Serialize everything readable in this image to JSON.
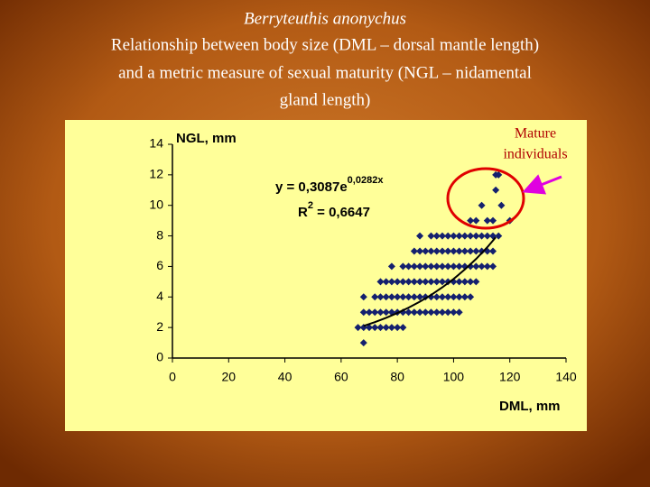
{
  "chart_data": {
    "type": "scatter",
    "subtitle": "Berryteuthis anonychus",
    "title": [
      "Relationship between body size (DML – dorsal mantle length)",
      "and a metric measure of sexual maturity (NGL – nidamental",
      "gland length)"
    ],
    "x_label": "DML, mm",
    "y_label": "NGL, mm",
    "color": "#14206e",
    "x": [
      68,
      66,
      68,
      70,
      72,
      74,
      76,
      78,
      80,
      82,
      68,
      70,
      72,
      74,
      76,
      78,
      80,
      82,
      84,
      86,
      88,
      90,
      92,
      94,
      96,
      98,
      100,
      102,
      68,
      72,
      74,
      76,
      78,
      80,
      82,
      84,
      86,
      88,
      90,
      92,
      94,
      96,
      98,
      100,
      102,
      104,
      106,
      74,
      76,
      78,
      80,
      82,
      84,
      86,
      88,
      90,
      92,
      94,
      96,
      98,
      100,
      102,
      104,
      106,
      108,
      78,
      82,
      84,
      86,
      88,
      90,
      92,
      94,
      96,
      98,
      100,
      102,
      104,
      106,
      108,
      110,
      112,
      114,
      86,
      88,
      90,
      92,
      94,
      96,
      98,
      100,
      102,
      104,
      106,
      108,
      110,
      112,
      114,
      88,
      92,
      94,
      96,
      98,
      100,
      102,
      104,
      106,
      108,
      110,
      112,
      114,
      116,
      106,
      108,
      112,
      114,
      120,
      110,
      117,
      115,
      115,
      116
    ],
    "values": [
      1,
      2,
      2,
      2,
      2,
      2,
      2,
      2,
      2,
      2,
      3,
      3,
      3,
      3,
      3,
      3,
      3,
      3,
      3,
      3,
      3,
      3,
      3,
      3,
      3,
      3,
      3,
      3,
      4,
      4,
      4,
      4,
      4,
      4,
      4,
      4,
      4,
      4,
      4,
      4,
      4,
      4,
      4,
      4,
      4,
      4,
      4,
      5,
      5,
      5,
      5,
      5,
      5,
      5,
      5,
      5,
      5,
      5,
      5,
      5,
      5,
      5,
      5,
      5,
      5,
      6,
      6,
      6,
      6,
      6,
      6,
      6,
      6,
      6,
      6,
      6,
      6,
      6,
      6,
      6,
      6,
      6,
      6,
      7,
      7,
      7,
      7,
      7,
      7,
      7,
      7,
      7,
      7,
      7,
      7,
      7,
      7,
      7,
      8,
      8,
      8,
      8,
      8,
      8,
      8,
      8,
      8,
      8,
      8,
      8,
      8,
      8,
      9,
      9,
      9,
      9,
      9,
      10,
      10,
      11,
      12,
      12
    ],
    "trend": {
      "color": "#000000",
      "x": [
        68,
        72,
        76,
        80,
        84,
        88,
        92,
        96,
        100,
        104,
        108,
        112,
        115
      ],
      "values": [
        2.1,
        2.35,
        2.63,
        2.95,
        3.3,
        3.69,
        4.13,
        4.63,
        5.18,
        5.8,
        6.49,
        7.26,
        7.91
      ]
    },
    "equation": {
      "base": "y = 0,3087e",
      "exponent": "0,0282x"
    },
    "r_squared": {
      "base": "R",
      "exponent": "2",
      "rest": " = 0,6647"
    },
    "annotation": [
      "Mature",
      "individuals"
    ],
    "xlim": [
      0,
      140
    ],
    "xticks": [
      0,
      20,
      40,
      60,
      80,
      100,
      120,
      140
    ],
    "ylim": [
      0,
      14
    ],
    "yticks": [
      0,
      2,
      4,
      6,
      8,
      10,
      12,
      14
    ],
    "grid": false
  }
}
